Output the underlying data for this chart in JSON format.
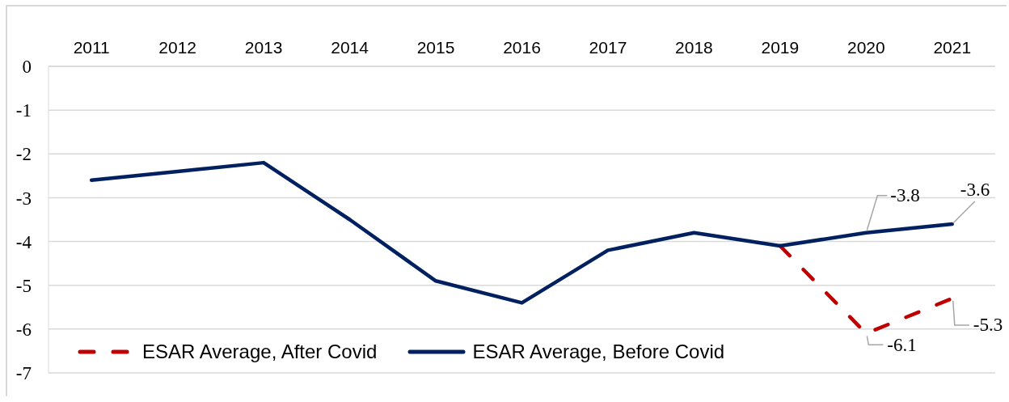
{
  "chart_data": {
    "type": "line",
    "categories": [
      "2011",
      "2012",
      "2013",
      "2014",
      "2015",
      "2016",
      "2017",
      "2018",
      "2019",
      "2020",
      "2021"
    ],
    "series": [
      {
        "name": "ESAR Average, After Covid",
        "color": "#c00000",
        "line_style": "dashed",
        "values": [
          null,
          null,
          null,
          null,
          null,
          null,
          null,
          null,
          -4.1,
          -6.1,
          -5.3
        ],
        "value_labels": [
          null,
          null,
          null,
          null,
          null,
          null,
          null,
          null,
          null,
          "-6.1",
          "-5.3"
        ]
      },
      {
        "name": "ESAR Average, Before Covid",
        "color": "#002060",
        "line_style": "solid",
        "values": [
          -2.6,
          -2.4,
          -2.2,
          -3.5,
          -4.9,
          -5.4,
          -4.2,
          -3.8,
          -4.1,
          -3.8,
          -3.6
        ],
        "value_labels": [
          null,
          null,
          null,
          null,
          null,
          null,
          null,
          null,
          null,
          "-3.8",
          "-3.6"
        ]
      }
    ],
    "ylim": [
      -7,
      0
    ],
    "yticks": [
      -7,
      -6,
      -5,
      -4,
      -3,
      -2,
      -1,
      0
    ],
    "grid": "y",
    "legend": "bottom left"
  }
}
